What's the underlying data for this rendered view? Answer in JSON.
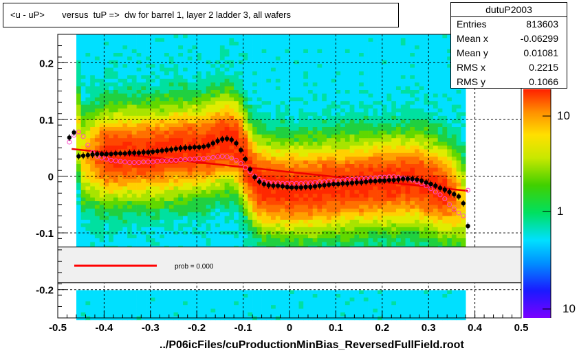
{
  "title": "<u - uP>       versus  tuP =>  dw for barrel 1, layer 2 ladder 3, all wafers",
  "stats": {
    "name": "dutuP2003",
    "rows": [
      {
        "key": "Entries",
        "value": "813603"
      },
      {
        "key": "Mean x",
        "value": "-0.06299"
      },
      {
        "key": "Mean y",
        "value": "0.01081"
      },
      {
        "key": "RMS x",
        "value": "0.2215"
      },
      {
        "key": "RMS y",
        "value": "0.1066"
      }
    ]
  },
  "footer": "../P06icFiles/cuProductionMinBias_ReversedFullField.root",
  "legend": {
    "fit_label": "prob = 0.000",
    "fit_color": "#ff0000"
  },
  "colors": {
    "black_profile": "#000000",
    "pink_profile": "#ff44cc",
    "fit_line": "#ee0000"
  },
  "chart_data": {
    "type": "heatmap",
    "title": "<u - uP>       versus  tuP =>  dw for barrel 1, layer 2 ladder 3, all wafers",
    "xlabel": "",
    "ylabel": "",
    "xlim": [
      -0.5,
      0.5
    ],
    "ylim": [
      -0.25,
      0.25
    ],
    "x_ticks": [
      "-0.5",
      "-0.4",
      "-0.3",
      "-0.2",
      "-0.1",
      "0",
      "0.1",
      "0.2",
      "0.3",
      "0.4",
      "0.5"
    ],
    "y_ticks": [
      "-0.2",
      "-0.1",
      "0",
      "0.1",
      "0.2"
    ],
    "z_scale": "log",
    "z_ticks": [
      "10",
      "1",
      "10"
    ],
    "grid": true,
    "series": [
      {
        "name": "",
        "color": "#000000",
        "x": [
          -0.475,
          -0.465,
          -0.455,
          -0.445,
          -0.435,
          -0.425,
          -0.415,
          -0.405,
          -0.395,
          -0.385,
          -0.375,
          -0.365,
          -0.355,
          -0.345,
          -0.335,
          -0.325,
          -0.315,
          -0.305,
          -0.295,
          -0.285,
          -0.275,
          -0.265,
          -0.255,
          -0.245,
          -0.235,
          -0.225,
          -0.215,
          -0.205,
          -0.195,
          -0.185,
          -0.175,
          -0.165,
          -0.155,
          -0.145,
          -0.135,
          -0.125,
          -0.115,
          -0.105,
          -0.095,
          -0.085,
          -0.075,
          -0.065,
          -0.055,
          -0.045,
          -0.035,
          -0.025,
          -0.015,
          -0.005,
          0.005,
          0.015,
          0.025,
          0.035,
          0.045,
          0.055,
          0.065,
          0.075,
          0.085,
          0.095,
          0.105,
          0.115,
          0.125,
          0.135,
          0.145,
          0.155,
          0.165,
          0.175,
          0.185,
          0.195,
          0.205,
          0.215,
          0.225,
          0.235,
          0.245,
          0.255,
          0.265,
          0.275,
          0.285,
          0.295,
          0.305,
          0.315,
          0.325,
          0.335,
          0.345,
          0.355,
          0.365,
          0.375,
          0.385
        ],
        "y": [
          0.068,
          0.077,
          0.035,
          0.036,
          0.037,
          0.038,
          0.039,
          0.039,
          0.039,
          0.039,
          0.04,
          0.04,
          0.04,
          0.041,
          0.041,
          0.041,
          0.042,
          0.042,
          0.043,
          0.044,
          0.045,
          0.046,
          0.047,
          0.048,
          0.049,
          0.05,
          0.05,
          0.051,
          0.051,
          0.052,
          0.054,
          0.058,
          0.062,
          0.065,
          0.066,
          0.064,
          0.058,
          0.046,
          0.03,
          0.012,
          -0.002,
          -0.01,
          -0.014,
          -0.016,
          -0.017,
          -0.017,
          -0.018,
          -0.019,
          -0.02,
          -0.02,
          -0.02,
          -0.019,
          -0.019,
          -0.018,
          -0.017,
          -0.016,
          -0.015,
          -0.014,
          -0.014,
          -0.013,
          -0.013,
          -0.012,
          -0.011,
          -0.011,
          -0.01,
          -0.009,
          -0.009,
          -0.008,
          -0.008,
          -0.007,
          -0.007,
          -0.006,
          -0.005,
          -0.005,
          -0.005,
          -0.006,
          -0.008,
          -0.011,
          -0.014,
          -0.017,
          -0.021,
          -0.024,
          -0.028,
          -0.032,
          -0.036,
          -0.048,
          -0.088
        ]
      },
      {
        "name": "",
        "color": "#ff44cc",
        "x": [
          -0.475,
          -0.465,
          -0.455,
          -0.445,
          -0.435,
          -0.425,
          -0.415,
          -0.405,
          -0.395,
          -0.385,
          -0.375,
          -0.365,
          -0.355,
          -0.345,
          -0.335,
          -0.325,
          -0.315,
          -0.305,
          -0.295,
          -0.285,
          -0.275,
          -0.265,
          -0.255,
          -0.245,
          -0.235,
          -0.225,
          -0.215,
          -0.205,
          -0.195,
          -0.185,
          -0.175,
          -0.165,
          -0.155,
          -0.145,
          -0.135,
          -0.125,
          -0.115,
          -0.105,
          -0.095,
          -0.085,
          -0.075,
          -0.065,
          -0.055,
          -0.045,
          -0.035,
          -0.025,
          -0.015,
          -0.005,
          0.005,
          0.015,
          0.025,
          0.035,
          0.045,
          0.055,
          0.065,
          0.075,
          0.085,
          0.095,
          0.105,
          0.115,
          0.125,
          0.135,
          0.145,
          0.155,
          0.165,
          0.175,
          0.185,
          0.195,
          0.205,
          0.215,
          0.225,
          0.235,
          0.245,
          0.255,
          0.265,
          0.275,
          0.285,
          0.295,
          0.305,
          0.315,
          0.325,
          0.335,
          0.345,
          0.355,
          0.365,
          0.375,
          0.385
        ],
        "y": [
          0.06,
          0.072,
          0.078,
          0.07,
          0.055,
          0.042,
          0.035,
          0.032,
          0.03,
          0.028,
          0.027,
          0.026,
          0.025,
          0.024,
          0.024,
          0.024,
          0.025,
          0.025,
          0.025,
          0.026,
          0.027,
          0.027,
          0.028,
          0.028,
          0.029,
          0.029,
          0.03,
          0.03,
          0.031,
          0.031,
          0.032,
          0.033,
          0.034,
          0.035,
          0.034,
          0.032,
          0.028,
          0.022,
          0.015,
          0.008,
          0.0,
          -0.006,
          -0.009,
          -0.011,
          -0.012,
          -0.012,
          -0.013,
          -0.013,
          -0.013,
          -0.013,
          -0.013,
          -0.012,
          -0.012,
          -0.011,
          -0.01,
          -0.01,
          -0.009,
          -0.008,
          -0.008,
          -0.007,
          -0.006,
          -0.006,
          -0.005,
          -0.004,
          -0.004,
          -0.003,
          -0.003,
          -0.002,
          -0.002,
          -0.001,
          -0.001,
          -0.002,
          -0.003,
          -0.005,
          -0.007,
          -0.01,
          -0.013,
          -0.017,
          -0.022,
          -0.028,
          -0.033,
          -0.04,
          -0.05,
          -0.058,
          -0.065,
          -0.07,
          -0.025
        ]
      }
    ],
    "fit_line": {
      "x": [
        -0.47,
        0.385
      ],
      "y": [
        0.048,
        -0.026
      ]
    }
  }
}
